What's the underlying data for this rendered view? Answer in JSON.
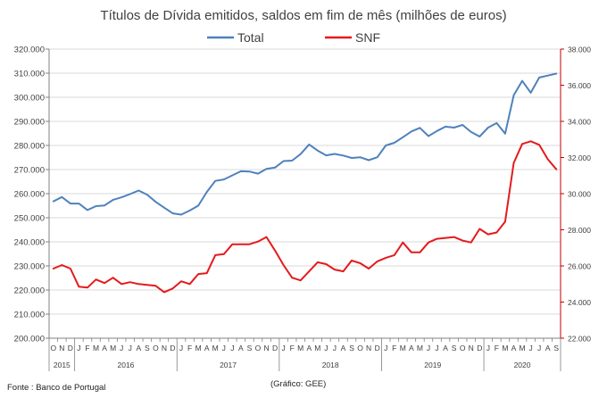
{
  "chart_data": {
    "type": "line",
    "title": "Títulos de Dívida emitidos, saldos em fim de mês  (milhões de euros)",
    "legend": {
      "placement": "top-center",
      "entries": [
        "Total",
        "SNF"
      ]
    },
    "x": {
      "months": [
        "O",
        "N",
        "D",
        "J",
        "F",
        "M",
        "A",
        "M",
        "J",
        "J",
        "A",
        "S",
        "O",
        "N",
        "D",
        "J",
        "F",
        "M",
        "A",
        "M",
        "J",
        "J",
        "A",
        "S",
        "O",
        "N",
        "D",
        "J",
        "F",
        "M",
        "A",
        "M",
        "J",
        "J",
        "A",
        "S",
        "O",
        "N",
        "D",
        "J",
        "F",
        "M",
        "A",
        "M",
        "J",
        "J",
        "A",
        "S",
        "O",
        "N",
        "D",
        "J",
        "F",
        "M",
        "A",
        "M",
        "J",
        "J",
        "A",
        "S"
      ],
      "years": [
        {
          "label": "2015",
          "start": 0,
          "end": 2
        },
        {
          "label": "2016",
          "start": 3,
          "end": 14
        },
        {
          "label": "2017",
          "start": 15,
          "end": 26
        },
        {
          "label": "2018",
          "start": 27,
          "end": 38
        },
        {
          "label": "2019",
          "start": 39,
          "end": 50
        },
        {
          "label": "2020",
          "start": 51,
          "end": 59
        }
      ]
    },
    "y_left": {
      "range": [
        200000,
        320000
      ],
      "step": 10000,
      "tick_labels": [
        "200.000",
        "210.000",
        "220.000",
        "230.000",
        "240.000",
        "250.000",
        "260.000",
        "270.000",
        "280.000",
        "290.000",
        "300.000",
        "310.000",
        "320.000"
      ]
    },
    "y_right": {
      "range": [
        22000,
        38000
      ],
      "step": 2000,
      "tick_labels": [
        "22.000",
        "24.000",
        "26.000",
        "28.000",
        "30.000",
        "32.000",
        "34.000",
        "36.000",
        "38.000"
      ]
    },
    "series": [
      {
        "name": "Total",
        "axis": "left",
        "color": "#4f81bd",
        "values": [
          256800,
          258600,
          255900,
          255900,
          253200,
          254800,
          255100,
          257400,
          258500,
          259800,
          261300,
          259600,
          256600,
          254200,
          251800,
          251300,
          253000,
          255000,
          260700,
          265300,
          265900,
          267600,
          269300,
          269200,
          268300,
          270300,
          270800,
          273500,
          273700,
          276400,
          280400,
          277900,
          275900,
          276500,
          275800,
          274800,
          275100,
          273900,
          275100,
          280000,
          281100,
          283400,
          285800,
          287300,
          283900,
          286000,
          287800,
          287400,
          288500,
          285600,
          283700,
          287400,
          289300,
          284900,
          300800,
          306800,
          301900,
          308200,
          309000,
          309800
        ],
        "total_points": 60
      },
      {
        "name": "SNF",
        "axis": "right",
        "color": "#e41a1c",
        "values": [
          25850,
          26050,
          25850,
          24850,
          24800,
          25250,
          25050,
          25350,
          25000,
          25100,
          25000,
          24950,
          24900,
          24550,
          24750,
          25150,
          25000,
          25550,
          25600,
          26600,
          26650,
          27200,
          27200,
          27200,
          27350,
          27600,
          26850,
          26050,
          25350,
          25200,
          25700,
          26200,
          26100,
          25800,
          25700,
          26300,
          26150,
          25850,
          26250,
          26450,
          26600,
          27300,
          26750,
          26750,
          27300,
          27500,
          27550,
          27600,
          27400,
          27300,
          28050,
          27750,
          27850,
          28450,
          31700,
          32750,
          32900,
          32700,
          31900,
          31350
        ]
      }
    ],
    "source_note": "Fonte : Banco de Portugal",
    "credit_note": "(Gráfico: GEE)"
  }
}
